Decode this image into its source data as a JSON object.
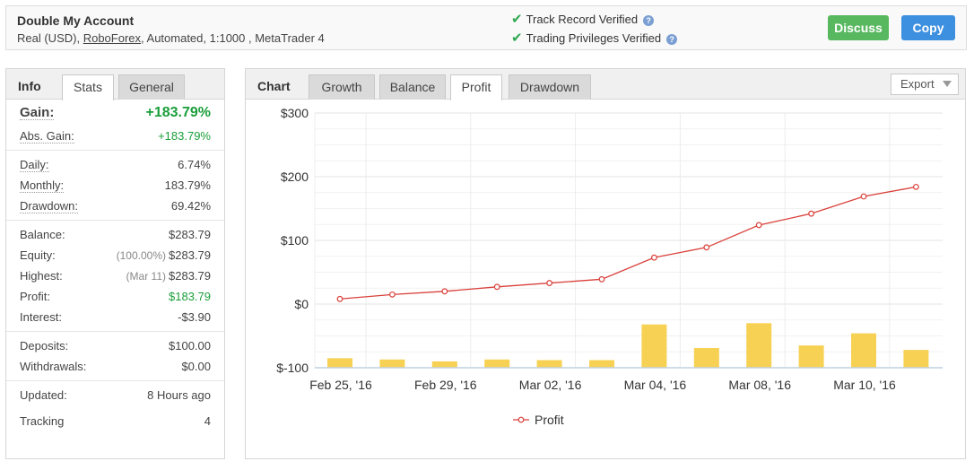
{
  "header": {
    "account_name": "Double My Account",
    "account_type": "Real (USD),",
    "broker": "RoboForex",
    "account_details": ", Automated, 1:1000 , MetaTrader 4",
    "verified_1": "Track Record Verified",
    "verified_2": "Trading Privileges Verified",
    "discuss_label": "Discuss",
    "copy_label": "Copy"
  },
  "info": {
    "title": "Info",
    "tabs": [
      "Stats",
      "General"
    ],
    "gain_label": "Gain:",
    "gain_value": "+183.79%",
    "abs_gain_label": "Abs. Gain:",
    "abs_gain_value": "+183.79%",
    "daily_label": "Daily:",
    "daily_value": "6.74%",
    "monthly_label": "Monthly:",
    "monthly_value": "183.79%",
    "drawdown_label": "Drawdown:",
    "drawdown_value": "69.42%",
    "balance_label": "Balance:",
    "balance_value": "$283.79",
    "equity_label": "Equity:",
    "equity_sub": "(100.00%)",
    "equity_value": "$283.79",
    "highest_label": "Highest:",
    "highest_sub": "(Mar 11)",
    "highest_value": "$283.79",
    "profit_label": "Profit:",
    "profit_value": "$183.79",
    "interest_label": "Interest:",
    "interest_value": "-$3.90",
    "deposits_label": "Deposits:",
    "deposits_value": "$100.00",
    "withdrawals_label": "Withdrawals:",
    "withdrawals_value": "$0.00",
    "updated_label": "Updated:",
    "updated_value": "8 Hours ago",
    "tracking_label": "Tracking",
    "tracking_value": "4"
  },
  "chart_panel": {
    "title": "Chart",
    "tabs": [
      "Growth",
      "Balance",
      "Profit",
      "Drawdown"
    ],
    "active_tab": "Profit",
    "export_label": "Export"
  },
  "colors": {
    "line": "#d9403a",
    "bar": "#f7d154",
    "positive": "#1a9e3a",
    "discuss": "#58b85f",
    "copy": "#3d8fe0"
  },
  "chart_data": {
    "type": "line",
    "title": "",
    "xlabel": "",
    "ylabel": "",
    "ylim": [
      -100,
      300
    ],
    "yticks": [
      "$300",
      "$200",
      "$100",
      "$0",
      "$-100"
    ],
    "ytick_values": [
      300,
      200,
      100,
      0,
      -100
    ],
    "xtick_labels": [
      "Feb 25, '16",
      "Feb 29, '16",
      "Mar 02, '16",
      "Mar 04, '16",
      "Mar 08, '16",
      "Mar 10, '16"
    ],
    "grid": true,
    "legend_position": "bottom-center",
    "series": [
      {
        "name": "Profit",
        "type": "line",
        "values": [
          8,
          15,
          20,
          27,
          33,
          39,
          73,
          89,
          124,
          142,
          169,
          184
        ]
      },
      {
        "type": "bar",
        "values": [
          -85,
          -87,
          -90,
          -87,
          -88,
          -88,
          -32,
          -69,
          -30,
          -65,
          -46,
          -72
        ]
      }
    ]
  }
}
